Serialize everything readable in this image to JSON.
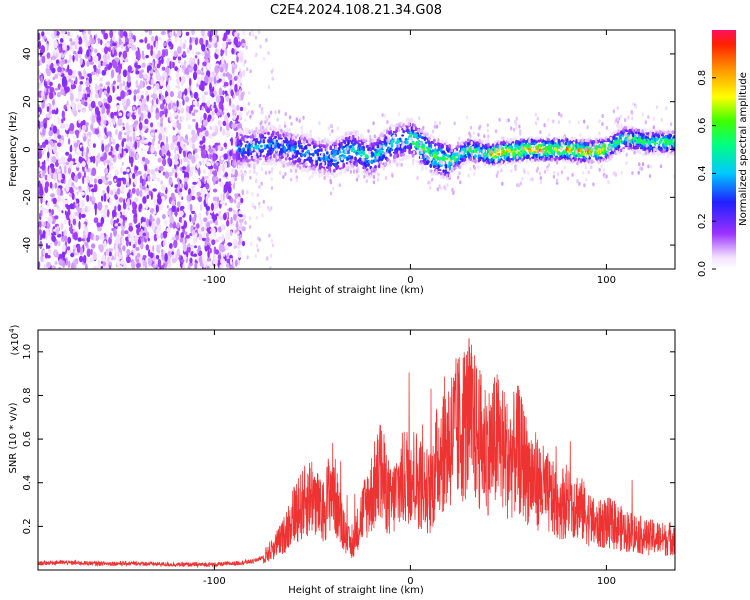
{
  "title": "C2E4.2024.108.21.34.G08",
  "chart_data": [
    {
      "type": "heatmap",
      "xlabel": "Height of straight line (km)",
      "ylabel": "Frequency (Hz)",
      "xlim": [
        -190,
        135
      ],
      "ylim": [
        -50,
        50
      ],
      "x_ticks": [
        -100,
        0,
        100
      ],
      "y_ticks": [
        -40,
        -20,
        0,
        20,
        40
      ],
      "colorbar": {
        "label": "Normalized spectral amplitude",
        "range": [
          0,
          1
        ],
        "ticks": [
          0.0,
          0.2,
          0.4,
          0.6,
          0.8
        ]
      },
      "ridge": {
        "description_x": [
          -90,
          -70,
          -50,
          -40,
          -30,
          -20,
          -10,
          0,
          10,
          20,
          30,
          40,
          50,
          60,
          70,
          80,
          90,
          100,
          110,
          120,
          130
        ],
        "frequency_hz": [
          0,
          2,
          -2,
          -4,
          0,
          -4,
          2,
          5,
          -2,
          -5,
          0,
          -2,
          -1,
          0,
          0,
          0,
          -1,
          0,
          5,
          3,
          3
        ]
      }
    },
    {
      "type": "line",
      "xlabel": "Height of straight line (km)",
      "ylabel": "SNR (10 * v/v)",
      "y_multiplier": "(x10⁴)",
      "y_multiplier_base": "(x10",
      "y_multiplier_exp": "4",
      "y_multiplier_close": ")",
      "xlim": [
        -190,
        135
      ],
      "ylim": [
        0,
        1.1
      ],
      "x_ticks": [
        -100,
        0,
        100
      ],
      "y_ticks": [
        0.2,
        0.4,
        0.6,
        0.8,
        1.0
      ],
      "series": [
        {
          "color": "#ee3333",
          "x": [
            -190,
            -180,
            -160,
            -140,
            -120,
            -100,
            -90,
            -80,
            -75,
            -70,
            -65,
            -60,
            -55,
            -50,
            -45,
            -40,
            -35,
            -30,
            -25,
            -20,
            -15,
            -10,
            -5,
            0,
            5,
            10,
            15,
            20,
            25,
            30,
            35,
            40,
            45,
            50,
            55,
            60,
            65,
            70,
            75,
            80,
            85,
            90,
            95,
            100,
            105,
            110,
            115,
            120,
            125,
            130,
            135
          ],
          "y": [
            0.03,
            0.035,
            0.03,
            0.03,
            0.025,
            0.025,
            0.03,
            0.04,
            0.06,
            0.1,
            0.15,
            0.25,
            0.3,
            0.35,
            0.25,
            0.4,
            0.2,
            0.1,
            0.25,
            0.35,
            0.45,
            0.3,
            0.4,
            0.45,
            0.4,
            0.35,
            0.55,
            0.6,
            0.65,
            0.7,
            0.6,
            0.55,
            0.6,
            0.5,
            0.55,
            0.45,
            0.4,
            0.35,
            0.3,
            0.32,
            0.3,
            0.25,
            0.2,
            0.22,
            0.2,
            0.18,
            0.17,
            0.15,
            0.15,
            0.14,
            0.15
          ]
        }
      ]
    }
  ]
}
